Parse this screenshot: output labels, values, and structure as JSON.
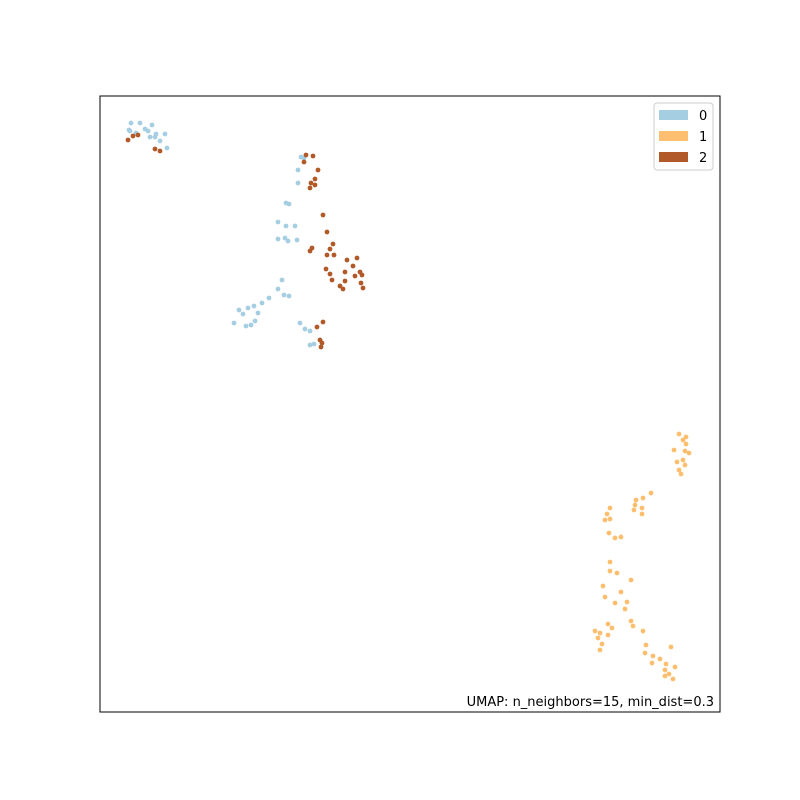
{
  "chart_data": {
    "type": "scatter",
    "title": "",
    "xlabel": "",
    "ylabel": "",
    "xlim": [
      0,
      620
    ],
    "ylim": [
      616,
      0
    ],
    "x_ticks_visible": false,
    "y_ticks_visible": false,
    "grid": false,
    "legend_placement": "top-right",
    "annotation": "UMAP: n_neighbors=15, min_dist=0.3",
    "series": [
      {
        "name": "0",
        "color": "#a6cee3",
        "points": [
          [
            31,
            27
          ],
          [
            40,
            27
          ],
          [
            52,
            29
          ],
          [
            30,
            35
          ],
          [
            29,
            34
          ],
          [
            45,
            33
          ],
          [
            48,
            35
          ],
          [
            36,
            37
          ],
          [
            50,
            41
          ],
          [
            56,
            38
          ],
          [
            55,
            41
          ],
          [
            60,
            45
          ],
          [
            65,
            38
          ],
          [
            67,
            52
          ],
          [
            201,
            61
          ],
          [
            204,
            62
          ],
          [
            198,
            74
          ],
          [
            198,
            87
          ],
          [
            186,
            107
          ],
          [
            189,
            108
          ],
          [
            178,
            126
          ],
          [
            186,
            130
          ],
          [
            185,
            142
          ],
          [
            178,
            143
          ],
          [
            188,
            145
          ],
          [
            197,
            144
          ],
          [
            195,
            130
          ],
          [
            182,
            184
          ],
          [
            178,
            193
          ],
          [
            184,
            199
          ],
          [
            189,
            200
          ],
          [
            169,
            202
          ],
          [
            162,
            207
          ],
          [
            154,
            210
          ],
          [
            148,
            212
          ],
          [
            139,
            214
          ],
          [
            143,
            218
          ],
          [
            158,
            217
          ],
          [
            155,
            225
          ],
          [
            134,
            227
          ],
          [
            151,
            229
          ],
          [
            146,
            230
          ],
          [
            200,
            227
          ],
          [
            205,
            233
          ],
          [
            210,
            235
          ],
          [
            214,
            248
          ],
          [
            210,
            249
          ]
        ]
      },
      {
        "name": "1",
        "color": "#fdbf6f",
        "points": [
          [
            579,
            338
          ],
          [
            586,
            341
          ],
          [
            583,
            344
          ],
          [
            586,
            348
          ],
          [
            574,
            354
          ],
          [
            585,
            355
          ],
          [
            589,
            357
          ],
          [
            583,
            364
          ],
          [
            577,
            366
          ],
          [
            585,
            369
          ],
          [
            581,
            378
          ],
          [
            579,
            374
          ],
          [
            551,
            397
          ],
          [
            543,
            402
          ],
          [
            536,
            404
          ],
          [
            535,
            409
          ],
          [
            542,
            412
          ],
          [
            534,
            414
          ],
          [
            542,
            418
          ],
          [
            510,
            412
          ],
          [
            507,
            418
          ],
          [
            505,
            424
          ],
          [
            510,
            423
          ],
          [
            509,
            437
          ],
          [
            515,
            442
          ],
          [
            521,
            441
          ],
          [
            510,
            466
          ],
          [
            510,
            475
          ],
          [
            517,
            477
          ],
          [
            531,
            484
          ],
          [
            503,
            490
          ],
          [
            505,
            501
          ],
          [
            521,
            496
          ],
          [
            515,
            507
          ],
          [
            527,
            506
          ],
          [
            525,
            513
          ],
          [
            531,
            525
          ],
          [
            533,
            530
          ],
          [
            508,
            528
          ],
          [
            512,
            532
          ],
          [
            508,
            539
          ],
          [
            495,
            535
          ],
          [
            500,
            537
          ],
          [
            498,
            542
          ],
          [
            502,
            548
          ],
          [
            500,
            554
          ],
          [
            543,
            535
          ],
          [
            546,
            549
          ],
          [
            545,
            557
          ],
          [
            571,
            551
          ],
          [
            553,
            560
          ],
          [
            560,
            563
          ],
          [
            552,
            567
          ],
          [
            566,
            568
          ],
          [
            575,
            571
          ],
          [
            565,
            574
          ],
          [
            569,
            578
          ],
          [
            565,
            580
          ],
          [
            573,
            583
          ]
        ]
      },
      {
        "name": "2",
        "color": "#b15928",
        "points": [
          [
            28,
            44
          ],
          [
            33,
            40
          ],
          [
            38,
            39
          ],
          [
            55,
            53
          ],
          [
            60,
            55
          ],
          [
            206,
            59
          ],
          [
            213,
            60
          ],
          [
            204,
            66
          ],
          [
            218,
            74
          ],
          [
            215,
            83
          ],
          [
            211,
            87
          ],
          [
            215,
            89
          ],
          [
            210,
            92
          ],
          [
            223,
            119
          ],
          [
            227,
            136
          ],
          [
            212,
            152
          ],
          [
            210,
            155
          ],
          [
            233,
            148
          ],
          [
            230,
            153
          ],
          [
            227,
            159
          ],
          [
            234,
            159
          ],
          [
            257,
            162
          ],
          [
            247,
            164
          ],
          [
            253,
            170
          ],
          [
            226,
            173
          ],
          [
            230,
            178
          ],
          [
            245,
            176
          ],
          [
            260,
            176
          ],
          [
            255,
            180
          ],
          [
            262,
            179
          ],
          [
            232,
            184
          ],
          [
            245,
            185
          ],
          [
            240,
            190
          ],
          [
            261,
            187
          ],
          [
            243,
            193
          ],
          [
            263,
            192
          ],
          [
            223,
            226
          ],
          [
            217,
            231
          ],
          [
            220,
            244
          ],
          [
            222,
            247
          ],
          [
            221,
            251
          ]
        ]
      }
    ]
  },
  "legend": {
    "items": [
      {
        "label": "0",
        "color": "#a6cee3"
      },
      {
        "label": "1",
        "color": "#fdbf6f"
      },
      {
        "label": "2",
        "color": "#b15928"
      }
    ]
  }
}
